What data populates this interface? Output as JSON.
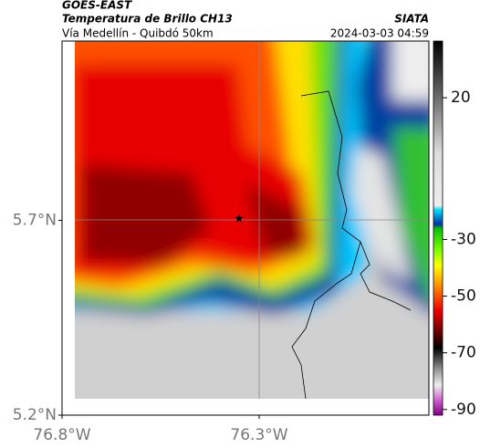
{
  "header": {
    "product": "GOES-EAST",
    "title": "Temperatura de Brillo CH13",
    "subtitle": "Vía Medellín - Quibdó 50km",
    "source": "SIATA",
    "datetime": "2024-03-03 04:59"
  },
  "map": {
    "xlim": [
      -76.8,
      -75.87
    ],
    "ylim": [
      5.2,
      6.16
    ],
    "xticks": [
      {
        "value": -76.8,
        "label": "76.8°W"
      },
      {
        "value": -76.3,
        "label": "76.3°W"
      }
    ],
    "yticks": [
      {
        "value": 5.7,
        "label": "5.7°N"
      },
      {
        "value": 5.2,
        "label": "5.2°N"
      }
    ]
  },
  "colorbar": {
    "lim": [
      -92,
      40
    ],
    "ticks": [
      20,
      -30,
      -50,
      -70,
      -90
    ]
  }
}
